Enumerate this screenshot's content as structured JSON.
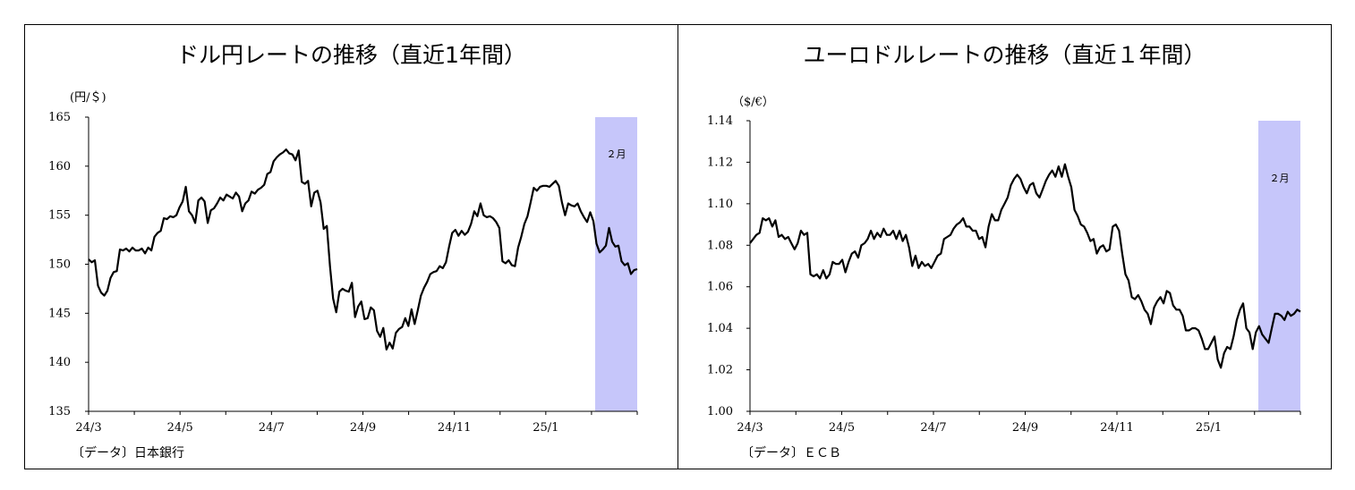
{
  "chart_data": [
    {
      "type": "line",
      "title": "ドル円レートの推移（直近1年間）",
      "unit_label": "(円/＄)",
      "source": "〔データ〕日本銀行",
      "x_tick_labels": [
        "24/3",
        "24/5",
        "24/7",
        "24/9",
        "24/11",
        "25/1"
      ],
      "ylim": [
        135,
        165
      ],
      "y_ticks": [
        135,
        140,
        145,
        150,
        155,
        160,
        165
      ],
      "grid": false,
      "highlight_band": {
        "label": "２月",
        "color": "#c6c6fa"
      },
      "series": [
        {
          "name": "",
          "values": [
            150.5,
            150.2,
            150.4,
            147.8,
            147.1,
            146.8,
            147.3,
            148.6,
            149.2,
            149.3,
            151.5,
            151.4,
            151.6,
            151.3,
            151.7,
            151.4,
            151.4,
            151.6,
            151.1,
            151.7,
            151.4,
            152.8,
            153.2,
            153.4,
            154.7,
            154.6,
            154.9,
            154.8,
            155.0,
            155.8,
            156.4,
            157.9,
            155.4,
            155.0,
            154.2,
            156.5,
            156.8,
            156.4,
            154.2,
            155.5,
            155.7,
            156.2,
            156.8,
            156.5,
            157.1,
            156.9,
            156.7,
            157.3,
            156.9,
            155.4,
            156.2,
            156.5,
            157.4,
            157.2,
            157.6,
            157.8,
            158.1,
            159.2,
            159.4,
            160.5,
            160.9,
            161.2,
            161.4,
            161.7,
            161.3,
            161.2,
            160.6,
            161.6,
            158.4,
            158.2,
            158.5,
            155.9,
            157.3,
            157.5,
            156.3,
            153.6,
            153.9,
            149.8,
            146.5,
            145.1,
            147.2,
            147.5,
            147.3,
            147.2,
            148.1,
            144.6,
            145.7,
            146.2,
            144.4,
            144.5,
            145.6,
            145.3,
            143.2,
            142.6,
            143.5,
            141.3,
            142.0,
            141.4,
            143.0,
            143.4,
            143.6,
            144.5,
            143.7,
            145.4,
            143.9,
            145.3,
            146.8,
            147.6,
            148.2,
            149.0,
            149.2,
            149.3,
            149.8,
            149.6,
            150.2,
            151.8,
            153.2,
            153.5,
            152.9,
            153.4,
            153.0,
            153.3,
            154.1,
            155.4,
            154.9,
            156.2,
            155.0,
            154.8,
            154.9,
            154.7,
            154.3,
            153.7,
            150.3,
            150.1,
            150.4,
            149.9,
            149.8,
            151.7,
            152.8,
            154.1,
            154.9,
            156.3,
            157.8,
            157.5,
            157.9,
            158.0,
            158.0,
            157.9,
            158.2,
            158.5,
            158.0,
            156.3,
            155.0,
            156.2,
            156.0,
            155.9,
            156.2,
            155.4,
            154.8,
            154.3,
            155.3,
            154.4,
            152.1,
            151.2,
            151.5,
            151.9,
            153.7,
            152.3,
            151.8,
            151.9,
            150.3,
            149.9,
            150.1,
            149.0,
            149.4,
            149.5
          ]
        }
      ]
    },
    {
      "type": "line",
      "title": "ユーロドルレートの推移（直近１年間）",
      "unit_label": "（$/€）",
      "source": "〔データ〕ＥＣＢ",
      "x_tick_labels": [
        "24/3",
        "24/5",
        "24/7",
        "24/9",
        "24/11",
        "25/1"
      ],
      "ylim": [
        1.0,
        1.14
      ],
      "y_ticks": [
        "1.00",
        "1.02",
        "1.04",
        "1.06",
        "1.08",
        "1.10",
        "1.12",
        "1.14"
      ],
      "grid": false,
      "highlight_band": {
        "label": "２月",
        "color": "#c6c6fa"
      },
      "series": [
        {
          "name": "",
          "values": [
            1.081,
            1.083,
            1.085,
            1.086,
            1.093,
            1.092,
            1.093,
            1.089,
            1.092,
            1.084,
            1.085,
            1.083,
            1.084,
            1.081,
            1.078,
            1.081,
            1.087,
            1.085,
            1.086,
            1.066,
            1.065,
            1.066,
            1.064,
            1.068,
            1.064,
            1.066,
            1.072,
            1.071,
            1.071,
            1.073,
            1.067,
            1.072,
            1.076,
            1.077,
            1.074,
            1.08,
            1.081,
            1.083,
            1.087,
            1.083,
            1.086,
            1.084,
            1.088,
            1.085,
            1.085,
            1.087,
            1.083,
            1.087,
            1.082,
            1.085,
            1.079,
            1.07,
            1.075,
            1.069,
            1.072,
            1.07,
            1.071,
            1.069,
            1.072,
            1.075,
            1.076,
            1.083,
            1.084,
            1.085,
            1.088,
            1.09,
            1.091,
            1.093,
            1.089,
            1.089,
            1.087,
            1.087,
            1.083,
            1.084,
            1.079,
            1.089,
            1.095,
            1.092,
            1.092,
            1.097,
            1.1,
            1.103,
            1.109,
            1.112,
            1.114,
            1.112,
            1.108,
            1.105,
            1.109,
            1.11,
            1.105,
            1.103,
            1.107,
            1.111,
            1.114,
            1.116,
            1.113,
            1.118,
            1.113,
            1.119,
            1.113,
            1.108,
            1.097,
            1.094,
            1.09,
            1.089,
            1.086,
            1.082,
            1.083,
            1.076,
            1.079,
            1.08,
            1.077,
            1.078,
            1.089,
            1.09,
            1.087,
            1.076,
            1.066,
            1.063,
            1.055,
            1.054,
            1.056,
            1.053,
            1.049,
            1.047,
            1.042,
            1.05,
            1.053,
            1.055,
            1.052,
            1.058,
            1.057,
            1.051,
            1.049,
            1.049,
            1.046,
            1.039,
            1.039,
            1.04,
            1.04,
            1.039,
            1.035,
            1.03,
            1.03,
            1.033,
            1.036,
            1.025,
            1.021,
            1.028,
            1.031,
            1.03,
            1.036,
            1.044,
            1.049,
            1.052,
            1.04,
            1.038,
            1.03,
            1.038,
            1.041,
            1.037,
            1.035,
            1.033,
            1.04,
            1.047,
            1.047,
            1.046,
            1.044,
            1.048,
            1.046,
            1.047,
            1.049,
            1.048
          ]
        }
      ]
    }
  ]
}
